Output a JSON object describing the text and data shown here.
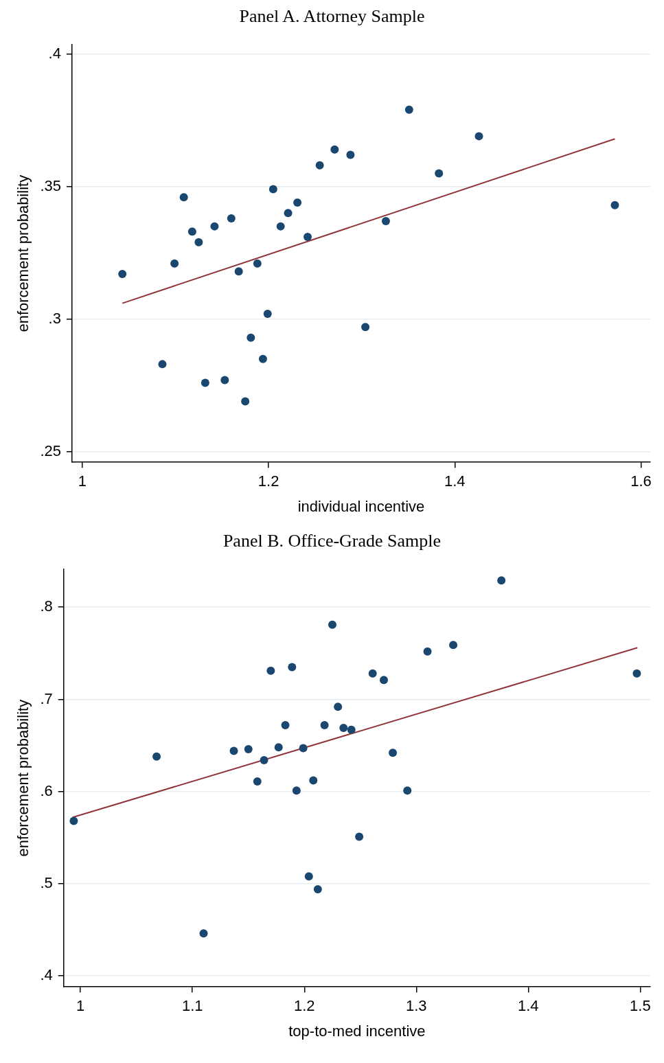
{
  "chart_data": [
    {
      "type": "scatter",
      "title": "Panel A. Attorney Sample",
      "xlabel": "individual incentive",
      "ylabel": "enforcement probability",
      "xlim": [
        0.989,
        1.61
      ],
      "ylim": [
        0.246,
        0.4035
      ],
      "xticks": [
        1,
        1.2,
        1.4,
        1.6
      ],
      "yticks": [
        {
          "value": 0.25,
          "label": ".25"
        },
        {
          "value": 0.3,
          "label": ".3"
        },
        {
          "value": 0.35,
          "label": ".35"
        },
        {
          "value": 0.4,
          "label": ".4"
        }
      ],
      "grid": "y",
      "legend": false,
      "marker": "circle",
      "series": [
        {
          "type": "scatter",
          "color": "#1a476f",
          "x": [
            1.043,
            1.086,
            1.099,
            1.109,
            1.118,
            1.125,
            1.132,
            1.142,
            1.153,
            1.16,
            1.168,
            1.175,
            1.181,
            1.188,
            1.194,
            1.199,
            1.205,
            1.213,
            1.221,
            1.231,
            1.242,
            1.255,
            1.271,
            1.288,
            1.304,
            1.326,
            1.351,
            1.383,
            1.426,
            1.572
          ],
          "values": [
            0.317,
            0.283,
            0.321,
            0.346,
            0.333,
            0.329,
            0.276,
            0.335,
            0.277,
            0.338,
            0.318,
            0.269,
            0.293,
            0.321,
            0.285,
            0.302,
            0.349,
            0.335,
            0.34,
            0.344,
            0.331,
            0.358,
            0.364,
            0.362,
            0.297,
            0.337,
            0.379,
            0.355,
            0.369,
            0.343
          ]
        },
        {
          "type": "line",
          "color": "#90353b",
          "marker": "none",
          "x": [
            1.043,
            1.572
          ],
          "values": [
            0.306,
            0.368
          ]
        }
      ]
    },
    {
      "type": "scatter",
      "title": "Panel B. Office-Grade Sample",
      "xlabel": "top-to-med incentive",
      "ylabel": "enforcement probability",
      "xlim": [
        0.985,
        1.509
      ],
      "ylim": [
        0.388,
        0.841
      ],
      "xticks": [
        1,
        1.1,
        1.2,
        1.3,
        1.4,
        1.5
      ],
      "yticks": [
        {
          "value": 0.4,
          "label": ".4"
        },
        {
          "value": 0.5,
          "label": ".5"
        },
        {
          "value": 0.6,
          "label": ".6"
        },
        {
          "value": 0.7,
          "label": ".7"
        },
        {
          "value": 0.8,
          "label": ".8"
        }
      ],
      "grid": "y",
      "legend": false,
      "marker": "circle",
      "series": [
        {
          "type": "scatter",
          "color": "#1a476f",
          "x": [
            0.994,
            1.068,
            1.11,
            1.137,
            1.15,
            1.158,
            1.164,
            1.17,
            1.177,
            1.183,
            1.189,
            1.193,
            1.199,
            1.204,
            1.208,
            1.212,
            1.218,
            1.225,
            1.23,
            1.235,
            1.242,
            1.249,
            1.261,
            1.271,
            1.279,
            1.292,
            1.31,
            1.333,
            1.376,
            1.497
          ],
          "values": [
            0.568,
            0.638,
            0.446,
            0.644,
            0.646,
            0.611,
            0.634,
            0.731,
            0.648,
            0.672,
            0.735,
            0.601,
            0.647,
            0.508,
            0.612,
            0.494,
            0.672,
            0.781,
            0.692,
            0.669,
            0.667,
            0.551,
            0.728,
            0.721,
            0.642,
            0.601,
            0.752,
            0.759,
            0.829,
            0.728
          ]
        },
        {
          "type": "line",
          "color": "#90353b",
          "marker": "none",
          "x": [
            0.993,
            1.4975
          ],
          "values": [
            0.572,
            0.756
          ]
        }
      ]
    }
  ]
}
